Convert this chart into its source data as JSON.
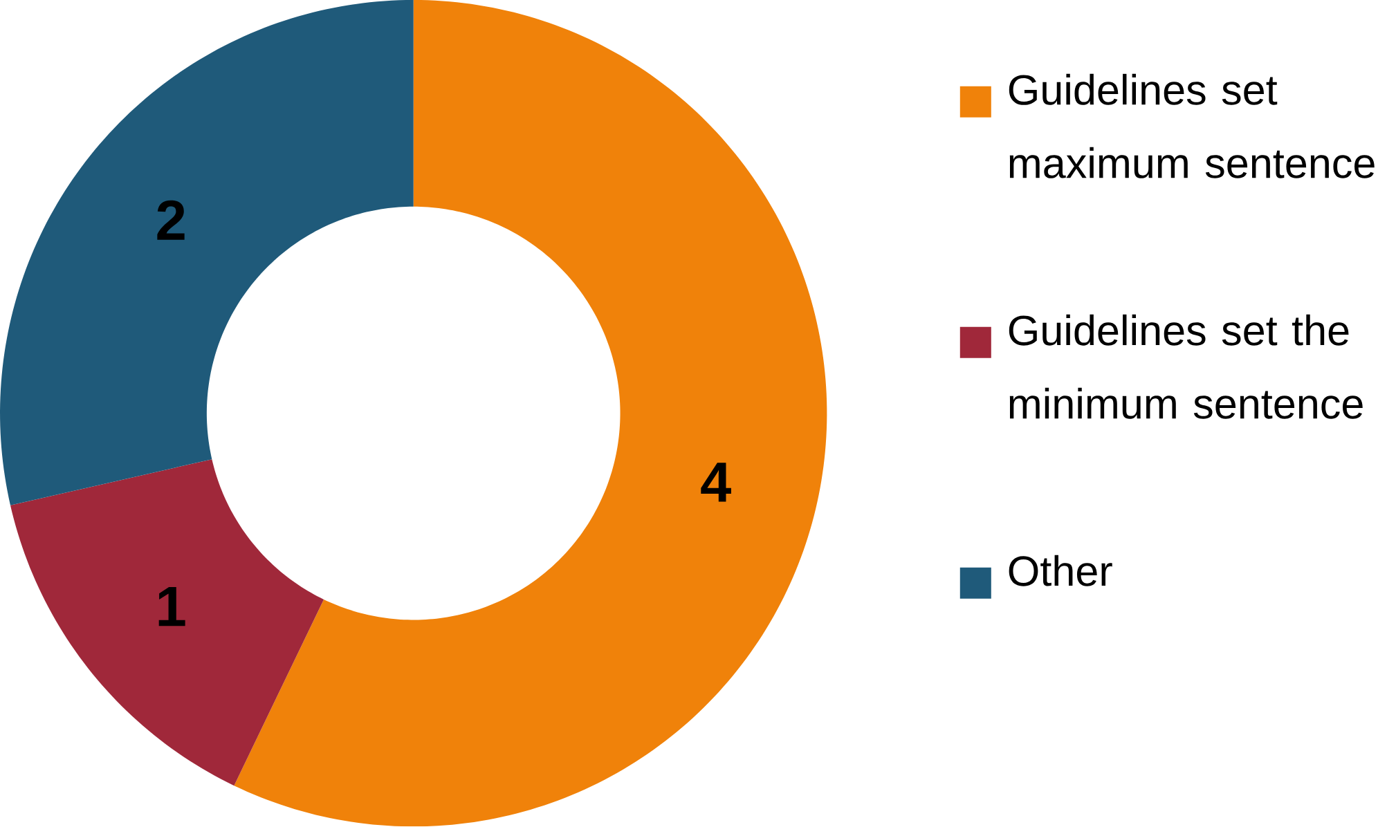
{
  "chart_data": {
    "type": "donut",
    "categories": [
      "Guidelines set maximum sentence",
      "Guidelines set the minimum sentence",
      "Other"
    ],
    "values": [
      4,
      1,
      2
    ],
    "colors": [
      "#f0820a",
      "#a0283a",
      "#1f5a7a"
    ],
    "data_labels": true,
    "legend": "right"
  }
}
